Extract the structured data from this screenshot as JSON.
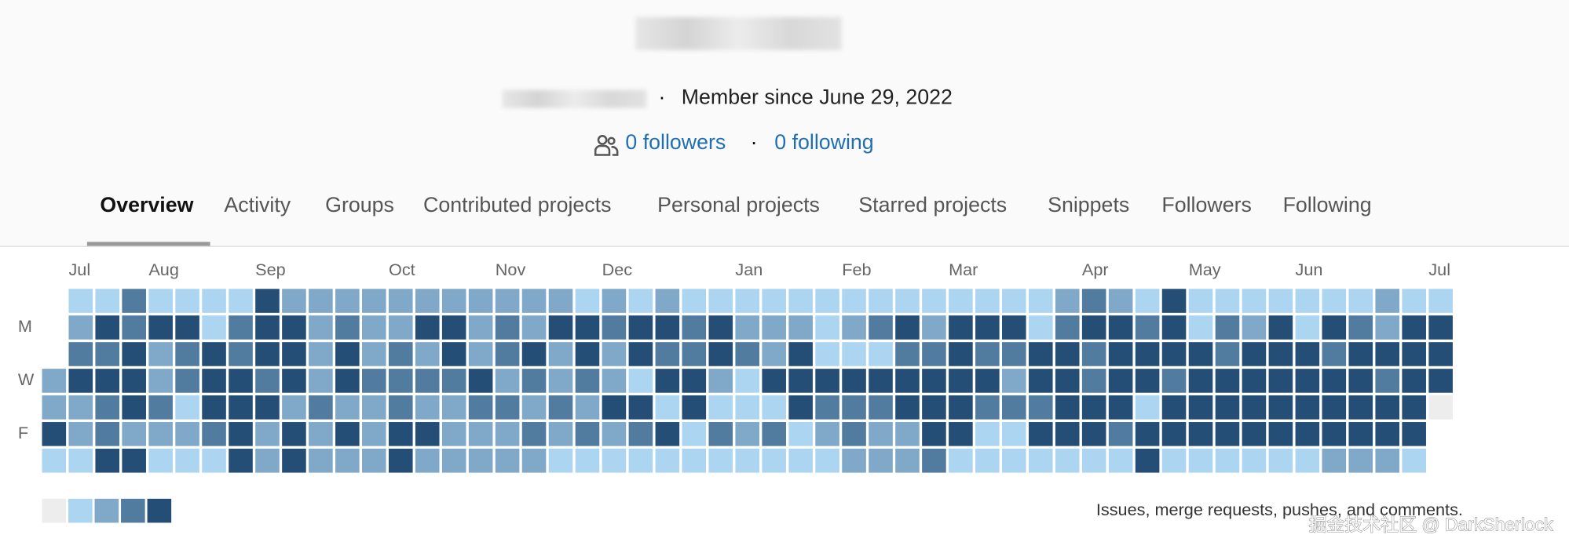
{
  "profile": {
    "member_since": "Member since June 29, 2022",
    "followers": "0 followers",
    "following": "0 following"
  },
  "tabs": [
    "Overview",
    "Activity",
    "Groups",
    "Contributed projects",
    "Personal projects",
    "Starred projects",
    "Snippets",
    "Followers",
    "Following"
  ],
  "calendar": {
    "months": [
      "Jul",
      "Aug",
      "Sep",
      "Oct",
      "Nov",
      "Dec",
      "Jan",
      "Feb",
      "Mar",
      "Apr",
      "May",
      "Jun",
      "Jul"
    ],
    "day_labels": [
      "M",
      "W",
      "F"
    ],
    "colors": [
      "#ededed",
      "#acd5f2",
      "#7fa8c9",
      "#527ba0",
      "#254e77"
    ],
    "legend_text": "Issues, merge requests, pushes, and comments.",
    "days": [
      [
        null,
        1,
        1,
        3,
        1,
        1,
        1,
        1,
        4,
        2,
        2,
        2,
        2,
        2,
        2,
        2,
        2,
        2,
        2,
        2,
        1,
        2,
        1,
        2,
        1,
        1,
        1,
        1,
        1,
        1,
        1,
        1,
        1,
        1,
        1,
        1,
        1,
        1,
        2,
        3,
        2,
        1,
        4,
        1,
        1,
        1,
        1,
        1,
        1,
        1,
        2,
        1,
        1
      ],
      [
        null,
        2,
        4,
        3,
        4,
        4,
        1,
        3,
        4,
        4,
        2,
        3,
        2,
        2,
        4,
        4,
        2,
        3,
        2,
        4,
        4,
        3,
        4,
        4,
        3,
        4,
        2,
        2,
        2,
        1,
        2,
        3,
        4,
        2,
        4,
        4,
        4,
        1,
        3,
        4,
        4,
        3,
        4,
        1,
        3,
        2,
        4,
        1,
        4,
        3,
        2,
        4,
        4
      ],
      [
        null,
        3,
        3,
        4,
        2,
        3,
        4,
        3,
        4,
        4,
        2,
        4,
        2,
        3,
        2,
        4,
        2,
        3,
        4,
        2,
        4,
        2,
        4,
        3,
        3,
        4,
        3,
        2,
        4,
        1,
        1,
        1,
        3,
        3,
        4,
        3,
        3,
        4,
        4,
        3,
        4,
        4,
        4,
        4,
        3,
        4,
        4,
        4,
        3,
        4,
        4,
        4,
        4
      ],
      [
        2,
        4,
        4,
        4,
        2,
        3,
        4,
        4,
        3,
        4,
        2,
        4,
        3,
        3,
        3,
        3,
        4,
        2,
        3,
        2,
        3,
        2,
        1,
        4,
        4,
        2,
        1,
        4,
        4,
        4,
        4,
        4,
        4,
        4,
        4,
        4,
        2,
        4,
        4,
        3,
        4,
        4,
        3,
        4,
        4,
        4,
        4,
        4,
        4,
        4,
        3,
        4,
        4
      ],
      [
        2,
        2,
        3,
        4,
        3,
        1,
        4,
        4,
        4,
        2,
        3,
        2,
        2,
        3,
        2,
        2,
        3,
        3,
        2,
        3,
        2,
        4,
        4,
        1,
        4,
        1,
        1,
        1,
        4,
        3,
        3,
        3,
        4,
        4,
        4,
        3,
        3,
        3,
        4,
        4,
        4,
        1,
        4,
        4,
        4,
        4,
        4,
        4,
        4,
        4,
        4,
        4,
        0
      ],
      [
        4,
        2,
        3,
        2,
        2,
        2,
        3,
        4,
        2,
        4,
        2,
        4,
        2,
        4,
        4,
        2,
        2,
        2,
        3,
        2,
        3,
        2,
        3,
        4,
        1,
        3,
        2,
        3,
        1,
        2,
        3,
        2,
        2,
        4,
        4,
        1,
        1,
        4,
        4,
        4,
        3,
        4,
        4,
        4,
        4,
        4,
        4,
        4,
        4,
        4,
        4,
        4,
        null
      ],
      [
        1,
        1,
        4,
        4,
        1,
        1,
        1,
        4,
        2,
        4,
        2,
        2,
        2,
        4,
        2,
        2,
        2,
        2,
        2,
        1,
        1,
        1,
        1,
        1,
        1,
        1,
        1,
        1,
        1,
        1,
        2,
        2,
        2,
        3,
        1,
        1,
        1,
        1,
        1,
        1,
        1,
        4,
        1,
        1,
        1,
        1,
        1,
        1,
        2,
        2,
        2,
        1,
        null
      ]
    ]
  },
  "watermark": "掘金技术社区 @ DarkSherlock"
}
